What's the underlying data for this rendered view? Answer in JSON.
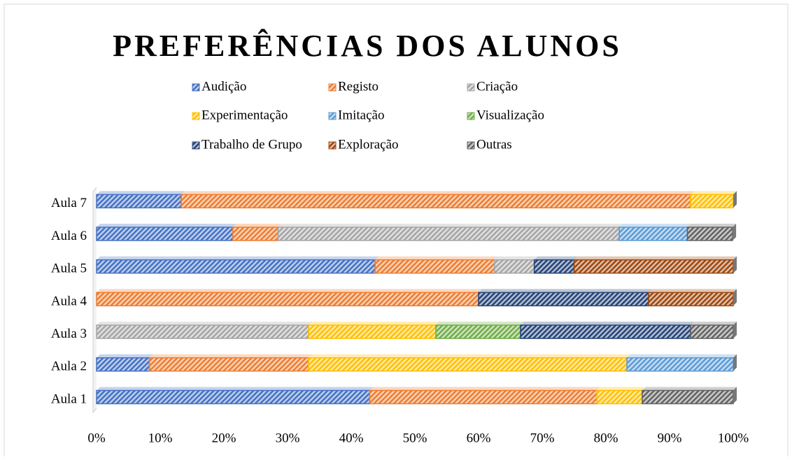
{
  "chart_data": {
    "type": "stacked-barh",
    "title": "PREFERÊNCIAS DOS ALUNOS",
    "categories": [
      "Aula 1",
      "Aula 2",
      "Aula 3",
      "Aula 4",
      "Aula 5",
      "Aula 6",
      "Aula 7"
    ],
    "series": [
      {
        "name": "Audição",
        "color": "#4472c4",
        "values": [
          42.9,
          8.3,
          null,
          null,
          43.75,
          21.4,
          13.3
        ]
      },
      {
        "name": "Registo",
        "color": "#ed7d31",
        "values": [
          35.7,
          25,
          null,
          60,
          18.75,
          7.1,
          80
        ]
      },
      {
        "name": "Criação",
        "color": "#a5a5a5",
        "values": [
          null,
          null,
          33.3,
          null,
          6.25,
          53.6,
          null
        ]
      },
      {
        "name": "Experimentação",
        "color": "#ffc000",
        "values": [
          7.1,
          50,
          20,
          null,
          null,
          null,
          6.7
        ]
      },
      {
        "name": "Imitação",
        "color": "#5b9bd5",
        "values": [
          null,
          16.7,
          null,
          null,
          null,
          10.7,
          null
        ]
      },
      {
        "name": "Visualização",
        "color": "#70ad47",
        "values": [
          null,
          null,
          13.3,
          null,
          null,
          null,
          null
        ]
      },
      {
        "name": "Trabalho de Grupo",
        "color": "#264478",
        "values": [
          null,
          null,
          26.7,
          26.7,
          6.25,
          null,
          null
        ]
      },
      {
        "name": "Exploração",
        "color": "#9e480e",
        "values": [
          null,
          null,
          null,
          13.3,
          25,
          null,
          null
        ]
      },
      {
        "name": "Outras",
        "color": "#636363",
        "values": [
          14.3,
          null,
          6.7,
          null,
          null,
          7.1,
          null
        ]
      }
    ],
    "xlim": [
      0,
      100
    ],
    "xticks": [
      {
        "value": 0,
        "label": "0%"
      },
      {
        "value": 10,
        "label": "10%"
      },
      {
        "value": 20,
        "label": "20%"
      },
      {
        "value": 30,
        "label": "30%"
      },
      {
        "value": 40,
        "label": "40%"
      },
      {
        "value": 50,
        "label": "50%"
      },
      {
        "value": 60,
        "label": "60%"
      },
      {
        "value": 70,
        "label": "70%"
      },
      {
        "value": 80,
        "label": "80%"
      },
      {
        "value": 90,
        "label": "90%"
      },
      {
        "value": 100,
        "label": "100%"
      }
    ]
  }
}
